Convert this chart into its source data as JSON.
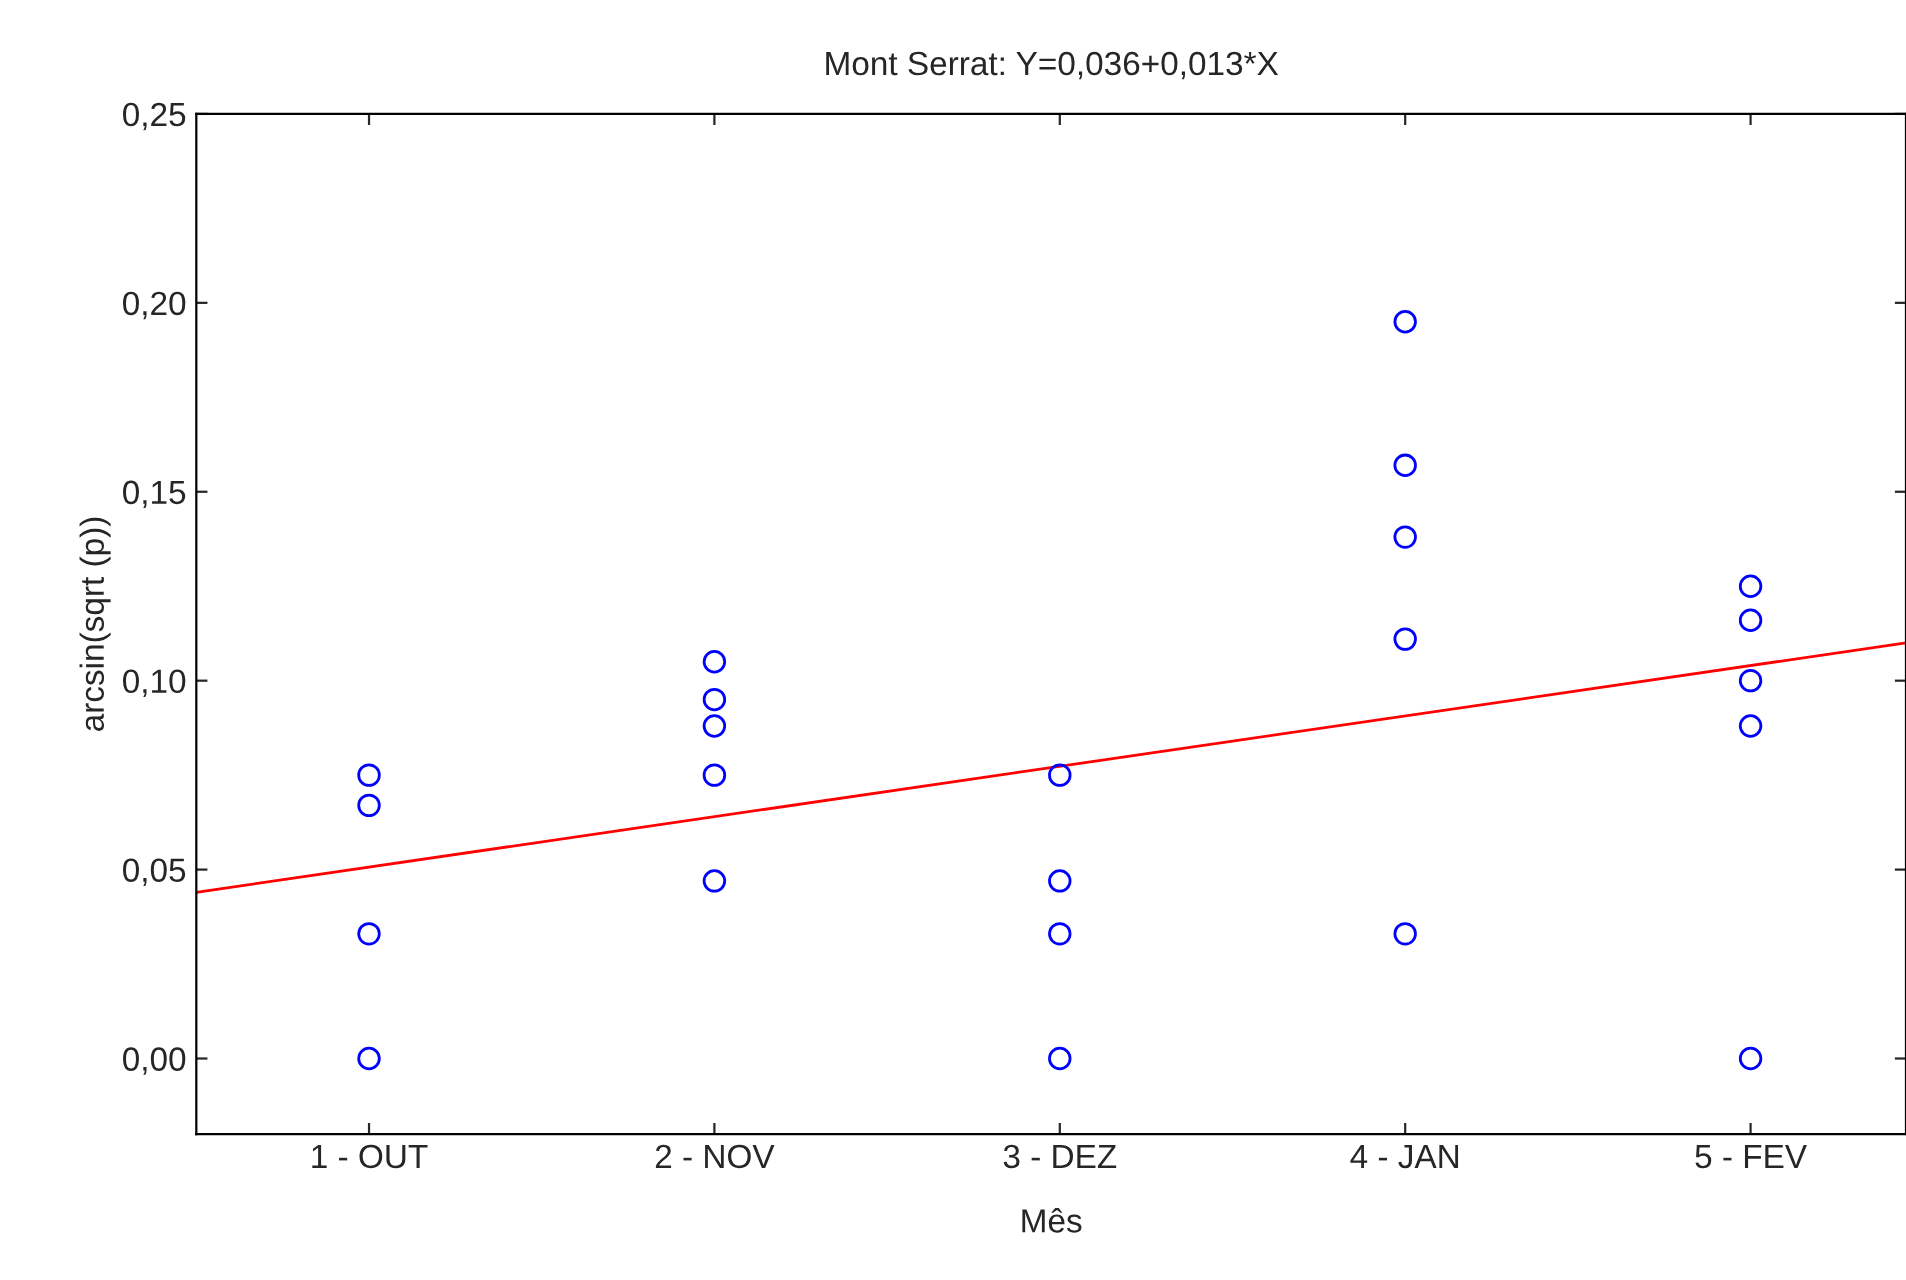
{
  "chart_data": {
    "type": "scatter",
    "title": "Mont Serrat: Y=0,036+0,013*X",
    "xlabel": "Mês",
    "ylabel": "arcsin(sqrt (p))",
    "series": [
      {
        "color": "#0000ff",
        "marker": "circle",
        "x": [
          1,
          1,
          1,
          1,
          2,
          2,
          2,
          2,
          2,
          3,
          3,
          3,
          3,
          4,
          4,
          4,
          4,
          4,
          5,
          5,
          5,
          5,
          5
        ],
        "values": [
          0.075,
          0.067,
          0.033,
          0.0,
          0.105,
          0.095,
          0.088,
          0.075,
          0.047,
          0.075,
          0.047,
          0.033,
          0.0,
          0.195,
          0.157,
          0.138,
          0.111,
          0.033,
          0.125,
          0.116,
          0.1,
          0.088,
          0.0
        ]
      },
      {
        "type": "line",
        "color": "#ff0000",
        "marker": "none",
        "line_style": "solid",
        "x": [
          0.5,
          5.45
        ],
        "values": [
          0.044,
          0.11
        ]
      }
    ],
    "xlim": [
      0.5,
      5.45
    ],
    "xticks": [
      {
        "value": 1,
        "label": "1 - OUT"
      },
      {
        "value": 2,
        "label": "2 - NOV"
      },
      {
        "value": 3,
        "label": "3 - DEZ"
      },
      {
        "value": 4,
        "label": "4 - JAN"
      },
      {
        "value": 5,
        "label": "5 - FEV"
      }
    ],
    "ylim": [
      -0.02,
      0.25
    ],
    "yticks": [
      {
        "value": 0.0,
        "label": "0,00"
      },
      {
        "value": 0.05,
        "label": "0,05"
      },
      {
        "value": 0.1,
        "label": "0,10"
      },
      {
        "value": 0.15,
        "label": "0,15"
      },
      {
        "value": 0.2,
        "label": "0,20"
      },
      {
        "value": 0.25,
        "label": "0,25"
      }
    ],
    "grid": false,
    "legend": false
  }
}
